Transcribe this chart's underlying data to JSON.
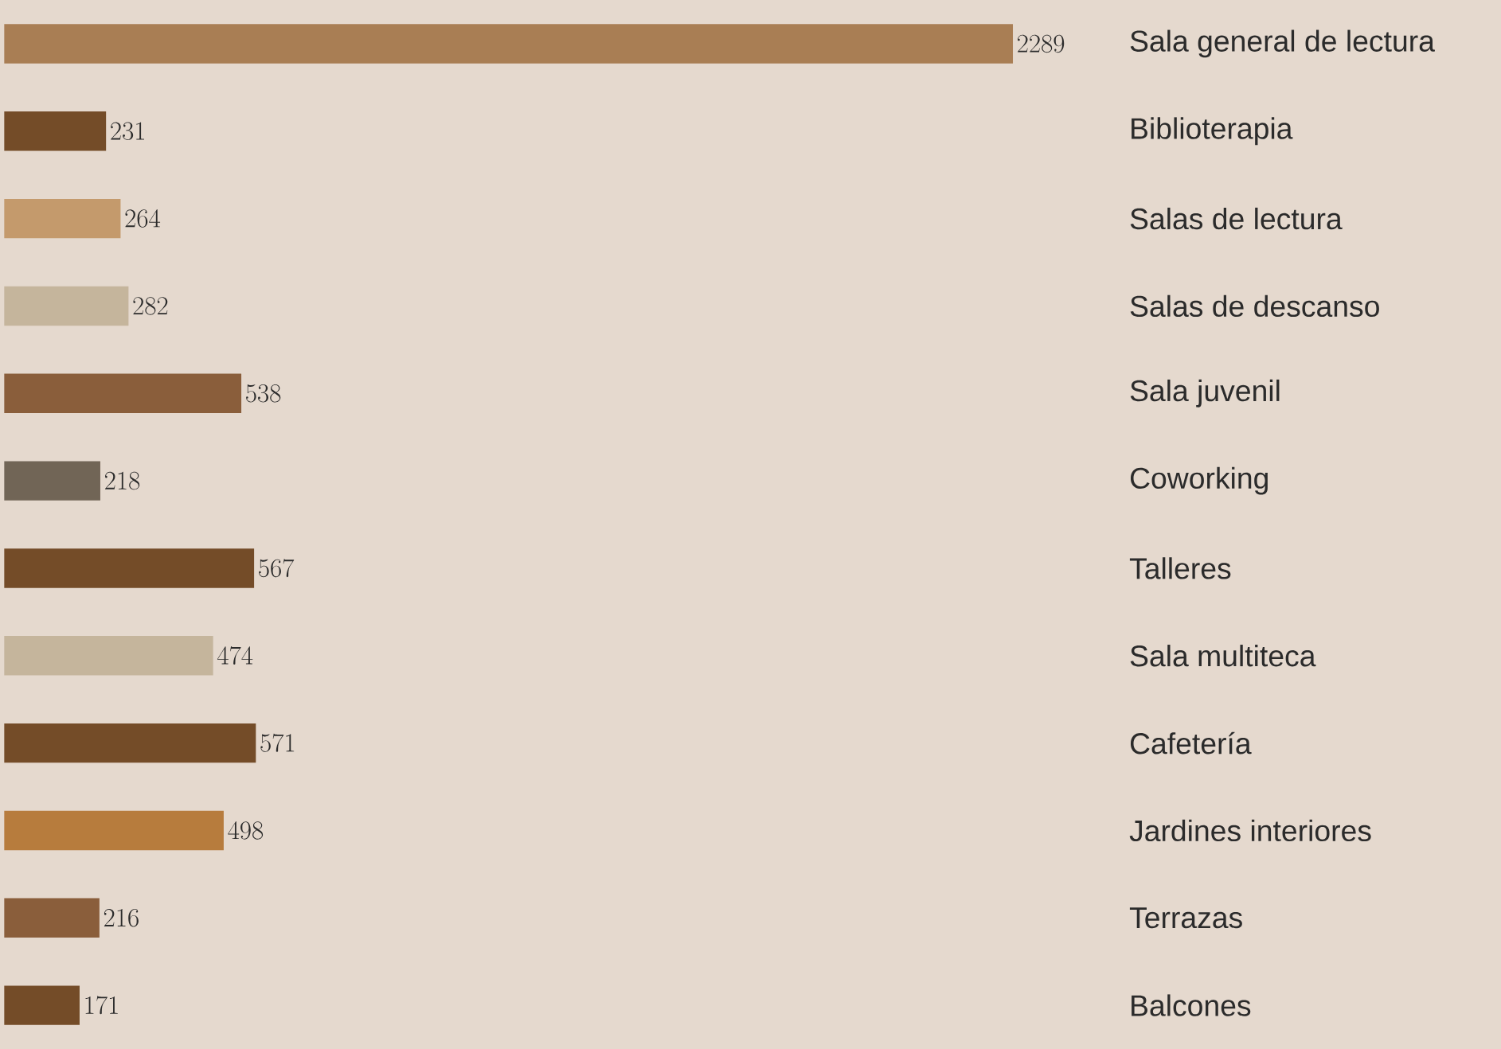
{
  "chart_data": {
    "type": "bar",
    "orientation": "horizontal",
    "data_labels": true,
    "categories": [
      "Sala general de lectura",
      "Biblioterapia",
      "Salas de lectura",
      "Salas de descanso",
      "Sala juvenil",
      "Coworking",
      "Talleres",
      "Sala multiteca",
      "Cafetería",
      "Jardines interiores",
      "Terrazas",
      "Balcones"
    ],
    "values": [
      2289,
      231,
      264,
      282,
      538,
      218,
      567,
      474,
      571,
      498,
      216,
      171
    ],
    "colors": [
      "#a97e54",
      "#744c28",
      "#c49a6c",
      "#c5b59c",
      "#8a5e3b",
      "#716556",
      "#744c28",
      "#c5b59c",
      "#744c28",
      "#b77c3d",
      "#8a5e3b",
      "#744c28"
    ]
  }
}
